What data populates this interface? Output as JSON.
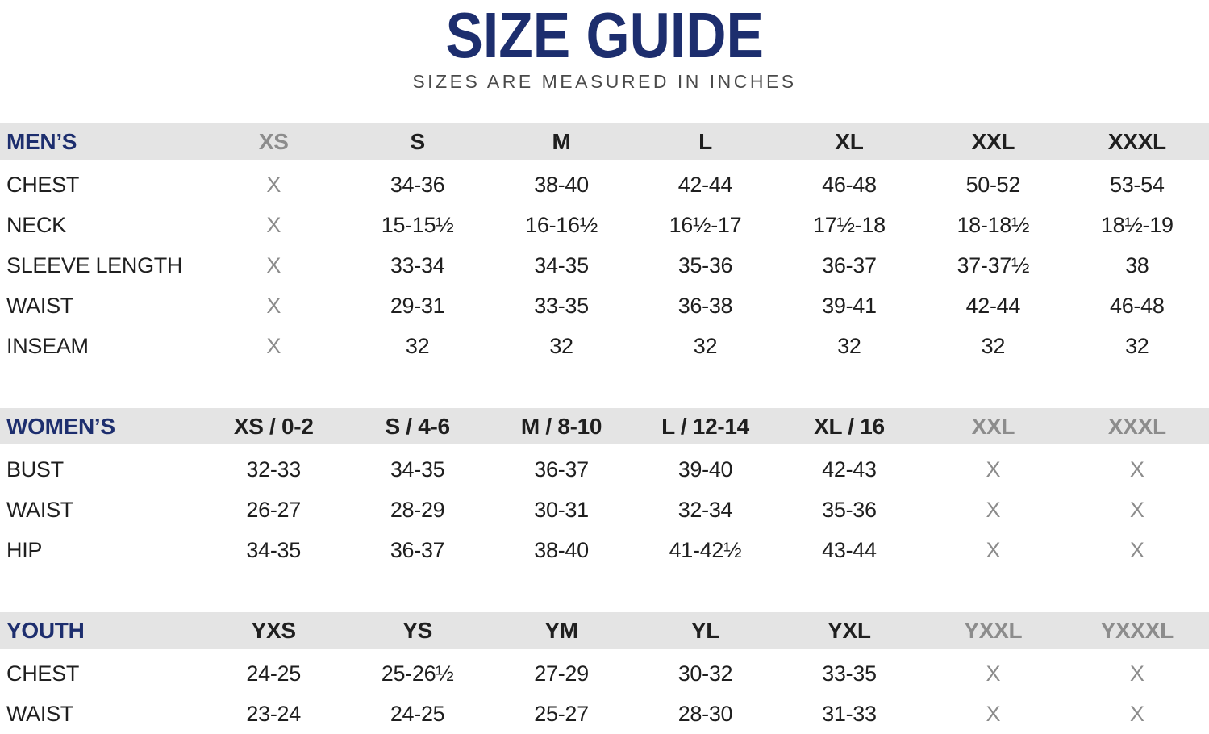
{
  "title": "SIZE GUIDE",
  "subtitle": "SIZES ARE MEASURED IN INCHES",
  "placeholder_value": "X",
  "colors": {
    "navy": "#1d2e6e",
    "black_text": "#1f1f1f",
    "muted_text": "#8c8c8c",
    "header_band_bg": "#e4e4e4",
    "subtitle_text": "#4a4a4a"
  },
  "chart_data": [
    {
      "type": "table",
      "title": "MEN’S",
      "columns": [
        {
          "label": "XS",
          "muted": true
        },
        {
          "label": "S",
          "muted": false
        },
        {
          "label": "M",
          "muted": false
        },
        {
          "label": "L",
          "muted": false
        },
        {
          "label": "XL",
          "muted": false
        },
        {
          "label": "XXL",
          "muted": false
        },
        {
          "label": "XXXL",
          "muted": false
        }
      ],
      "rows": [
        {
          "label": "CHEST",
          "values": [
            "X",
            "34-36",
            "38-40",
            "42-44",
            "46-48",
            "50-52",
            "53-54"
          ]
        },
        {
          "label": "NECK",
          "values": [
            "X",
            "15-15½",
            "16-16½",
            "16½-17",
            "17½-18",
            "18-18½",
            "18½-19"
          ]
        },
        {
          "label": "SLEEVE LENGTH",
          "values": [
            "X",
            "33-34",
            "34-35",
            "35-36",
            "36-37",
            "37-37½",
            "38"
          ]
        },
        {
          "label": "WAIST",
          "values": [
            "X",
            "29-31",
            "33-35",
            "36-38",
            "39-41",
            "42-44",
            "46-48"
          ]
        },
        {
          "label": "INSEAM",
          "values": [
            "X",
            "32",
            "32",
            "32",
            "32",
            "32",
            "32"
          ]
        }
      ]
    },
    {
      "type": "table",
      "title": "WOMEN’S",
      "columns": [
        {
          "label": "XS / 0-2",
          "muted": false
        },
        {
          "label": "S / 4-6",
          "muted": false
        },
        {
          "label": "M / 8-10",
          "muted": false
        },
        {
          "label": "L / 12-14",
          "muted": false
        },
        {
          "label": "XL / 16",
          "muted": false
        },
        {
          "label": "XXL",
          "muted": true
        },
        {
          "label": "XXXL",
          "muted": true
        }
      ],
      "rows": [
        {
          "label": "BUST",
          "values": [
            "32-33",
            "34-35",
            "36-37",
            "39-40",
            "42-43",
            "X",
            "X"
          ]
        },
        {
          "label": "WAIST",
          "values": [
            "26-27",
            "28-29",
            "30-31",
            "32-34",
            "35-36",
            "X",
            "X"
          ]
        },
        {
          "label": "HIP",
          "values": [
            "34-35",
            "36-37",
            "38-40",
            "41-42½",
            "43-44",
            "X",
            "X"
          ]
        }
      ]
    },
    {
      "type": "table",
      "title": "YOUTH",
      "columns": [
        {
          "label": "YXS",
          "muted": false
        },
        {
          "label": "YS",
          "muted": false
        },
        {
          "label": "YM",
          "muted": false
        },
        {
          "label": "YL",
          "muted": false
        },
        {
          "label": "YXL",
          "muted": false
        },
        {
          "label": "YXXL",
          "muted": true
        },
        {
          "label": "YXXXL",
          "muted": true
        }
      ],
      "rows": [
        {
          "label": "CHEST",
          "values": [
            "24-25",
            "25-26½",
            "27-29",
            "30-32",
            "33-35",
            "X",
            "X"
          ]
        },
        {
          "label": "WAIST",
          "values": [
            "23-24",
            "24-25",
            "25-27",
            "28-30",
            "31-33",
            "X",
            "X"
          ]
        }
      ]
    }
  ]
}
